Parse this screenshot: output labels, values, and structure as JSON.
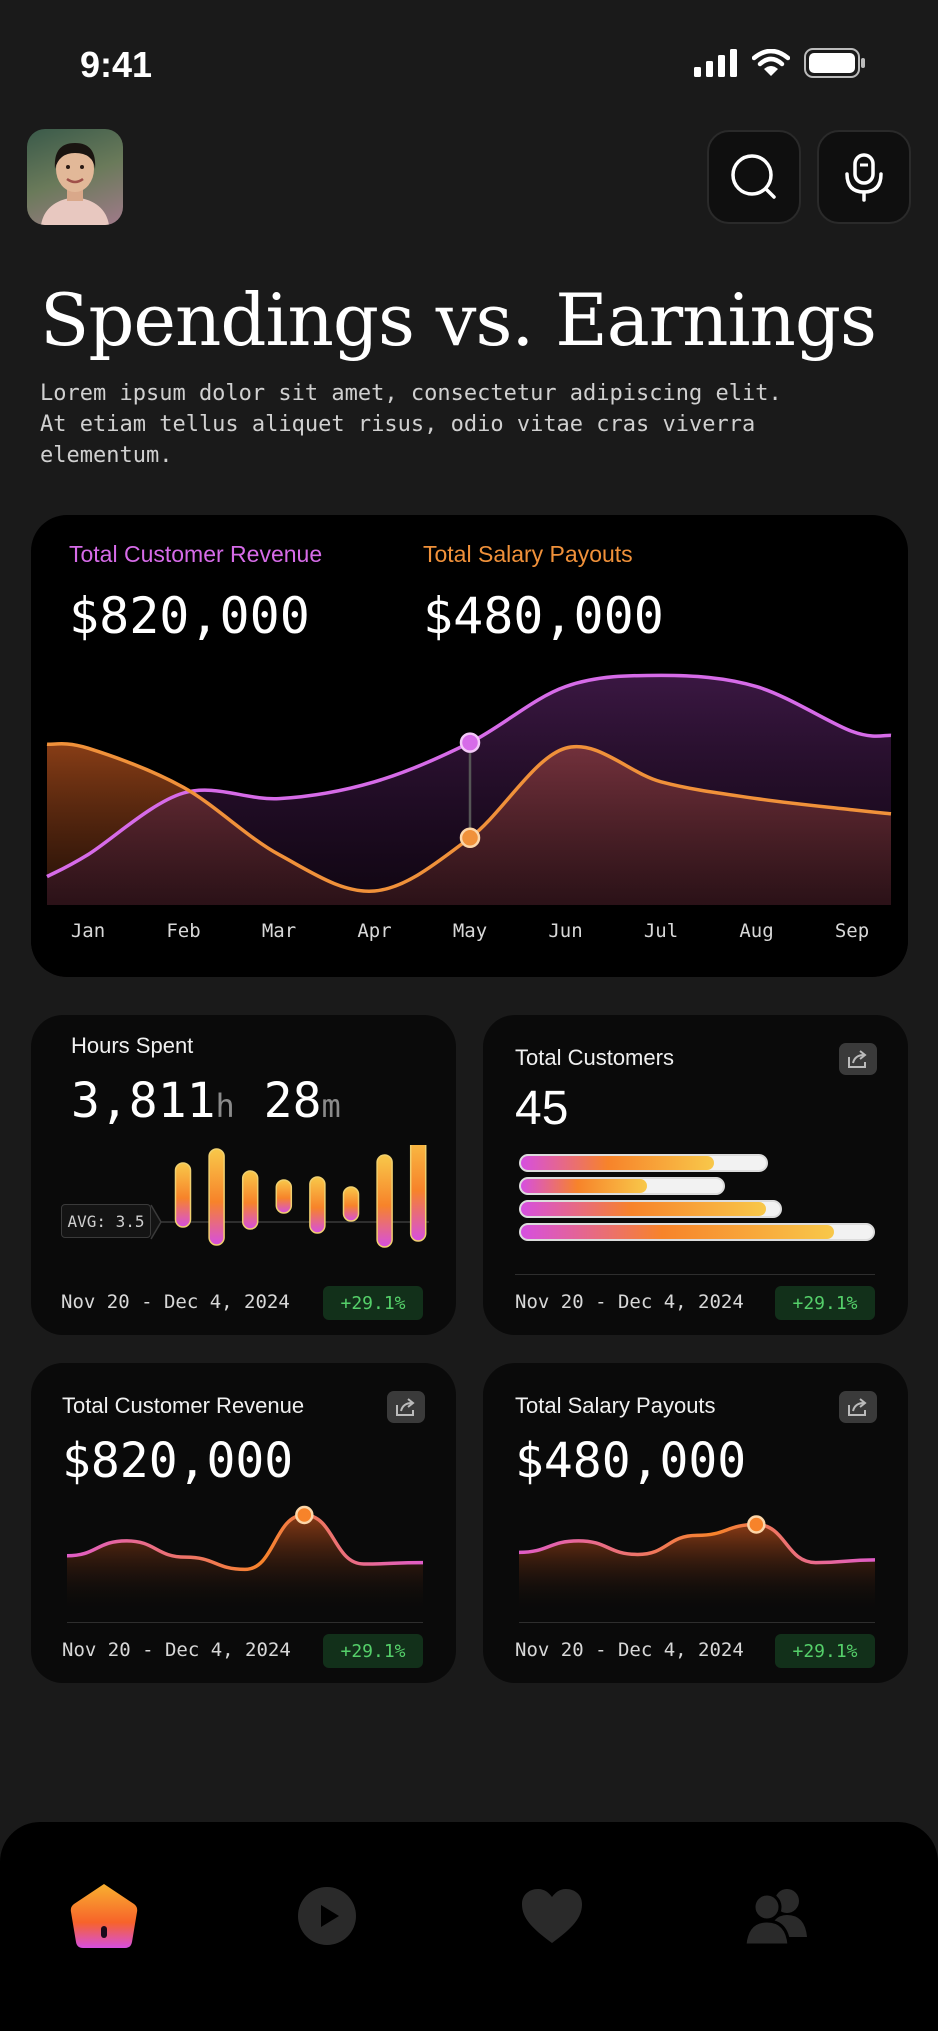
{
  "status_bar": {
    "time": "9:41"
  },
  "header": {
    "title": "Spendings vs. Earnings",
    "description": "Lorem ipsum dolor sit amet, consectetur adipiscing elit. At etiam tellus aliquet risus, odio vitae cras viverra elementum.",
    "buttons": [
      "search-icon",
      "microphone-icon"
    ]
  },
  "main_chart": {
    "revenue_label": "Total Customer Revenue",
    "revenue_value": "$820,000",
    "payout_label": "Total Salary Payouts",
    "payout_value": "$480,000",
    "highlighted_month": "May"
  },
  "hours_card": {
    "title": "Hours Spent",
    "hours": "3,811",
    "hours_unit": "h",
    "minutes": "28",
    "minutes_unit": "m",
    "avg_label": "AVG: 3.5",
    "date_range": "Nov 20 - Dec 4, 2024",
    "change": "+29.1%"
  },
  "customers_card": {
    "title": "Total Customers",
    "value": "45",
    "date_range": "Nov 20 - Dec 4, 2024",
    "change": "+29.1%"
  },
  "revenue_card": {
    "title": "Total Customer Revenue",
    "value": "$820,000",
    "date_range": "Nov 20 - Dec 4, 2024",
    "change": "+29.1%"
  },
  "payout_card": {
    "title": "Total Salary Payouts",
    "value": "$480,000",
    "date_range": "Nov 20 - Dec 4, 2024",
    "change": "+29.1%"
  },
  "bottom_nav": {
    "items": [
      "home-icon",
      "play-icon",
      "heart-icon",
      "users-icon"
    ],
    "active": "home-icon"
  },
  "colors": {
    "revenue": "#d66be8",
    "payout": "#f0913a",
    "positive": "#55d06a",
    "background": "#1a1a1a"
  },
  "chart_data": [
    {
      "type": "area",
      "categories": [
        "Jan",
        "Feb",
        "Mar",
        "Apr",
        "May",
        "Jun",
        "Jul",
        "Aug",
        "Sep"
      ],
      "series": [
        {
          "name": "Total Customer Revenue",
          "values": [
            18,
            40,
            38,
            44,
            58,
            78,
            82,
            78,
            62
          ]
        },
        {
          "name": "Total Salary Payouts",
          "values": [
            56,
            42,
            18,
            5,
            24,
            56,
            44,
            38,
            34
          ]
        }
      ],
      "ylim": [
        0,
        100
      ],
      "grid": false
    },
    {
      "type": "bar",
      "title": "Hours Spent",
      "values": [
        [
          18,
          82
        ],
        [
          4,
          100
        ],
        [
          26,
          84
        ],
        [
          35,
          68
        ],
        [
          32,
          88
        ],
        [
          42,
          76
        ],
        [
          10,
          102
        ],
        [
          -16,
          96
        ]
      ],
      "avg": 3.5
    },
    {
      "type": "bar",
      "title": "Total Customers",
      "orientation": "horizontal",
      "values": [
        [
          0.55,
          0.7
        ],
        [
          0.36,
          0.58
        ],
        [
          0.7,
          0.74
        ],
        [
          0.89,
          1.0
        ]
      ]
    },
    {
      "type": "line",
      "title": "Total Customer Revenue",
      "values": [
        40,
        62,
        38,
        20,
        100,
        28,
        30
      ],
      "highlight_index": 4
    },
    {
      "type": "line",
      "title": "Total Salary Payouts",
      "values": [
        45,
        62,
        42,
        70,
        86,
        30,
        34
      ],
      "highlight_index": 4
    }
  ]
}
